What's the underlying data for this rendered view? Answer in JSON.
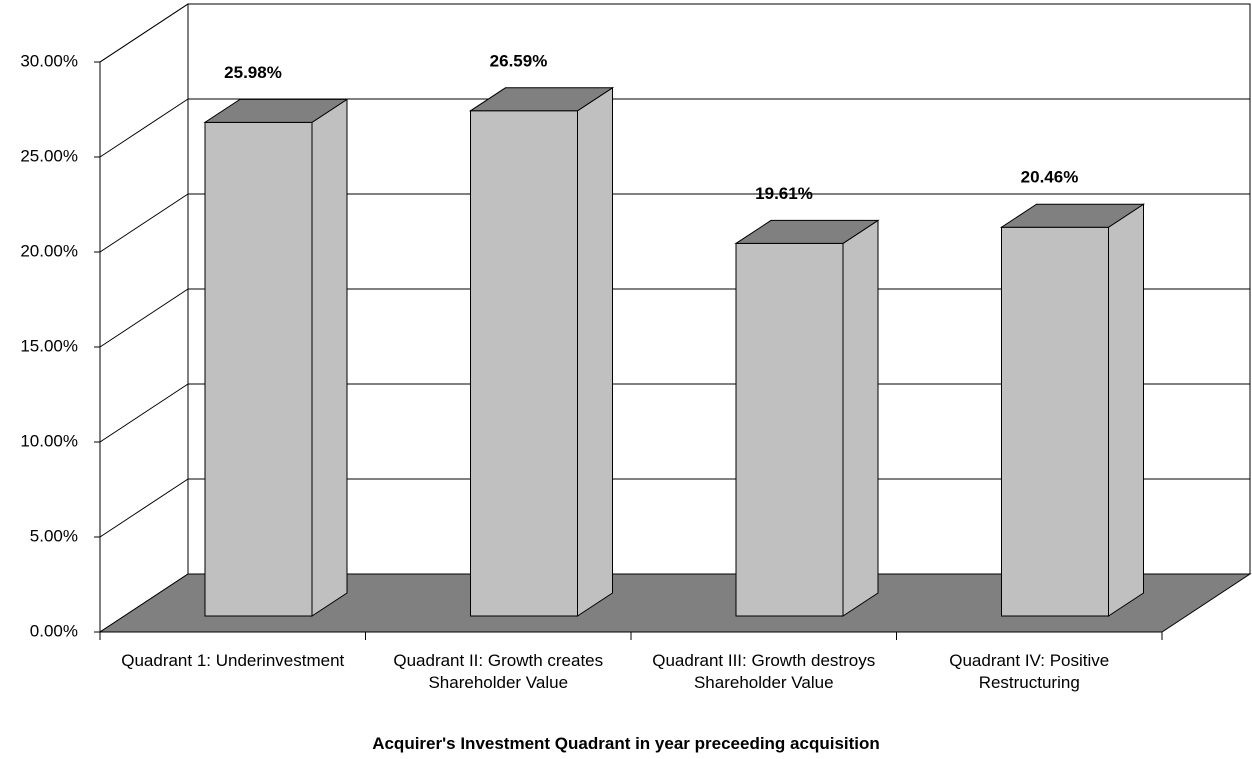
{
  "chart_data": {
    "type": "bar3d",
    "x_label": "Acquirer's Investment Quadrant in year preceeding acquisition",
    "categories": [
      "Quadrant 1: Underinvestment",
      "Quadrant II: Growth creates Shareholder Value",
      "Quadrant III: Growth destroys Shareholder Value",
      "Quadrant IV: Positive Restructuring"
    ],
    "values": [
      25.98,
      26.59,
      19.61,
      20.46
    ],
    "value_labels": [
      "25.98%",
      "26.59%",
      "19.61%",
      "20.46%"
    ],
    "color": "#c0c0c0",
    "ylim": [
      0,
      30
    ],
    "yticks": [
      {
        "value": 0,
        "label": "0.00%"
      },
      {
        "value": 5,
        "label": "5.00%"
      },
      {
        "value": 10,
        "label": "10.00%"
      },
      {
        "value": 15,
        "label": "15.00%"
      },
      {
        "value": 20,
        "label": "20.00%"
      },
      {
        "value": 25,
        "label": "25.00%"
      },
      {
        "value": 30,
        "label": "30.00%"
      }
    ],
    "grid": true
  }
}
